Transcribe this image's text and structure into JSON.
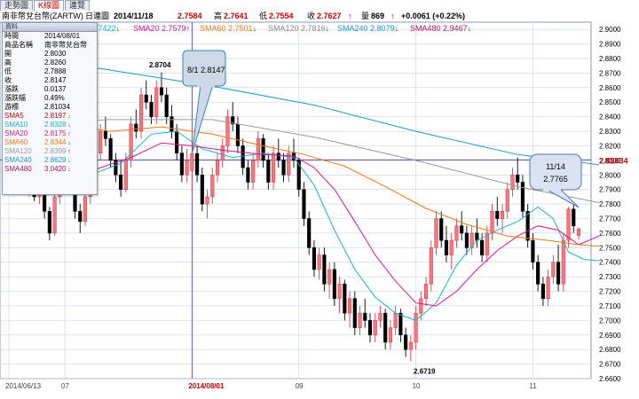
{
  "tabs": [
    {
      "label": "走勢圖"
    },
    {
      "label": "K線圖"
    },
    {
      "label": "連覽"
    }
  ],
  "header": {
    "product": "南非幣兌台幣(ZARTW)",
    "period": "日連圖",
    "date": "2014/11/18",
    "open": "2.7584",
    "high_label": "高",
    "high": "2.7641",
    "low_label": "低",
    "low": "2.7554",
    "close_label": "收",
    "close": "2.7627",
    "volume_label": "量",
    "volume": "869",
    "change": "+0.0061 (+0.22%)"
  },
  "sma_legend": [
    {
      "label": "",
      "value": ".7422",
      "dir": "down",
      "color": "#18b4c8"
    },
    {
      "label": "SMA20",
      "value": "2.7579",
      "dir": "up",
      "color": "#e0148c"
    },
    {
      "label": "SMA60",
      "value": "2.7501",
      "dir": "down",
      "color": "#f07818"
    },
    {
      "label": "SMA120",
      "value": "2.7816",
      "dir": "down",
      "color": "#9a9a9a"
    },
    {
      "label": "SMA240",
      "value": "2.8079",
      "dir": "down",
      "color": "#1e96d2"
    },
    {
      "label": "SMA480",
      "value": "2.9467",
      "dir": "down",
      "color": "#b4145a"
    }
  ],
  "info_panel": {
    "title": "資料",
    "rows": [
      {
        "key": "時間",
        "value": "2014/08/01",
        "color": "#000000"
      },
      {
        "key": "商品名稱",
        "value": "南非幣兌台幣",
        "color": "#000000"
      },
      {
        "key": "開",
        "value": "2.8030",
        "color": "#000000"
      },
      {
        "key": "高",
        "value": "2.8260",
        "color": "#000000"
      },
      {
        "key": "低",
        "value": "2.7888",
        "color": "#000000"
      },
      {
        "key": "收",
        "value": "2.8147",
        "color": "#000000"
      },
      {
        "key": "漲跌",
        "value": "0.0137",
        "color": "#000000"
      },
      {
        "key": "漲跌幅",
        "value": "0.49%",
        "color": "#000000"
      },
      {
        "key": "游標",
        "value": "2.81034",
        "color": "#000000"
      },
      {
        "key": "SMA5",
        "value": "2.8197",
        "dir": "down",
        "color": "#d00000"
      },
      {
        "key": "SMA10",
        "value": "2.8328",
        "dir": "down",
        "color": "#18b4c8"
      },
      {
        "key": "SMA20",
        "value": "2.8175",
        "dir": "up",
        "color": "#e0148c"
      },
      {
        "key": "SMA60",
        "value": "2.8344",
        "dir": "down",
        "color": "#f07818"
      },
      {
        "key": "SMA120",
        "value": "2.8399",
        "dir": "up",
        "color": "#9a9a9a"
      },
      {
        "key": "SMA240",
        "value": "2.8629",
        "dir": "down",
        "color": "#1e96d2"
      },
      {
        "key": "SMA480",
        "value": "3.0420",
        "dir": "down",
        "color": "#b4145a"
      }
    ]
  },
  "colors": {
    "up": "#f07a84",
    "up_border": "#d8404c",
    "down": "#000000",
    "grid": "#c9d3e3",
    "crosshair": "#3a3aa8",
    "callout_fill": "#cfd8e8",
    "callout_stroke": "#2e8ba8"
  },
  "chart_data": {
    "type": "candlestick",
    "ylim": [
      2.66,
      2.905
    ],
    "yticks": [
      "2.9000",
      "2.8900",
      "2.8800",
      "2.8700",
      "2.8600",
      "2.8500",
      "2.8400",
      "2.8300",
      "2.8200",
      "2.8100",
      "2.8000",
      "2.7900",
      "2.7800",
      "2.7700",
      "2.7600",
      "2.7500",
      "2.7400",
      "2.7300",
      "2.7200",
      "2.7100",
      "2.7000",
      "2.6900",
      "2.6800",
      "2.6700",
      "2.6600"
    ],
    "cursor_value": "2.81034",
    "xticks": [
      {
        "label": "2014/06/13",
        "index": 0
      },
      {
        "label": "07",
        "index": 11
      },
      {
        "label": "2014/08/01",
        "index": 36
      },
      {
        "label": "09",
        "index": 57
      },
      {
        "label": "10",
        "index": 80
      },
      {
        "label": "11",
        "index": 103
      }
    ],
    "peak_label": {
      "text": "2.8704",
      "index": 30,
      "value": 2.8704
    },
    "trough_label": {
      "text": "2.6719",
      "index": 82,
      "value": 2.6719
    },
    "callout_cursor": {
      "text": "8/1 2.8147",
      "index": 36,
      "value": 2.8147
    },
    "callout_last": {
      "line1": "11/14",
      "line2": "2.7765",
      "index": 112,
      "value": 2.7765
    },
    "candles": [
      [
        2.805,
        2.81,
        2.798,
        2.8
      ],
      [
        2.8,
        2.815,
        2.795,
        2.81
      ],
      [
        2.81,
        2.818,
        2.804,
        2.806
      ],
      [
        2.806,
        2.808,
        2.79,
        2.795
      ],
      [
        2.795,
        2.805,
        2.785,
        2.8
      ],
      [
        2.8,
        2.802,
        2.782,
        2.785
      ],
      [
        2.785,
        2.8,
        2.78,
        2.795
      ],
      [
        2.795,
        2.805,
        2.77,
        2.775
      ],
      [
        2.775,
        2.778,
        2.755,
        2.76
      ],
      [
        2.76,
        2.79,
        2.758,
        2.785
      ],
      [
        2.785,
        2.8,
        2.78,
        2.795
      ],
      [
        2.795,
        2.815,
        2.79,
        2.81
      ],
      [
        2.81,
        2.815,
        2.79,
        2.795
      ],
      [
        2.795,
        2.798,
        2.77,
        2.775
      ],
      [
        2.775,
        2.78,
        2.76,
        2.768
      ],
      [
        2.768,
        2.79,
        2.765,
        2.785
      ],
      [
        2.785,
        2.81,
        2.78,
        2.805
      ],
      [
        2.805,
        2.82,
        2.8,
        2.815
      ],
      [
        2.815,
        2.835,
        2.81,
        2.83
      ],
      [
        2.83,
        2.84,
        2.82,
        2.825
      ],
      [
        2.825,
        2.828,
        2.805,
        2.81
      ],
      [
        2.81,
        2.815,
        2.795,
        2.8
      ],
      [
        2.8,
        2.81,
        2.785,
        2.79
      ],
      [
        2.79,
        2.815,
        2.788,
        2.81
      ],
      [
        2.81,
        2.84,
        2.805,
        2.835
      ],
      [
        2.835,
        2.845,
        2.825,
        2.83
      ],
      [
        2.83,
        2.86,
        2.825,
        2.855
      ],
      [
        2.855,
        2.865,
        2.845,
        2.85
      ],
      [
        2.85,
        2.855,
        2.835,
        2.84
      ],
      [
        2.84,
        2.865,
        2.835,
        2.86
      ],
      [
        2.86,
        2.8704,
        2.85,
        2.855
      ],
      [
        2.855,
        2.86,
        2.835,
        2.84
      ],
      [
        2.84,
        2.848,
        2.825,
        2.83
      ],
      [
        2.83,
        2.835,
        2.81,
        2.815
      ],
      [
        2.815,
        2.82,
        2.795,
        2.8
      ],
      [
        2.8,
        2.818,
        2.795,
        2.81
      ],
      [
        2.803,
        2.826,
        2.7888,
        2.8147
      ],
      [
        2.8147,
        2.82,
        2.795,
        2.8
      ],
      [
        2.8,
        2.805,
        2.775,
        2.78
      ],
      [
        2.78,
        2.79,
        2.77,
        2.785
      ],
      [
        2.785,
        2.805,
        2.78,
        2.8
      ],
      [
        2.8,
        2.815,
        2.795,
        2.81
      ],
      [
        2.81,
        2.825,
        2.805,
        2.82
      ],
      [
        2.82,
        2.845,
        2.815,
        2.84
      ],
      [
        2.84,
        2.85,
        2.83,
        2.835
      ],
      [
        2.835,
        2.84,
        2.815,
        2.82
      ],
      [
        2.82,
        2.825,
        2.8,
        2.805
      ],
      [
        2.805,
        2.81,
        2.79,
        2.795
      ],
      [
        2.795,
        2.815,
        2.79,
        2.81
      ],
      [
        2.81,
        2.83,
        2.805,
        2.825
      ],
      [
        2.825,
        2.828,
        2.805,
        2.81
      ],
      [
        2.81,
        2.815,
        2.79,
        2.795
      ],
      [
        2.795,
        2.82,
        2.79,
        2.815
      ],
      [
        2.815,
        2.825,
        2.805,
        2.81
      ],
      [
        2.81,
        2.815,
        2.795,
        2.8
      ],
      [
        2.8,
        2.82,
        2.795,
        2.815
      ],
      [
        2.815,
        2.825,
        2.805,
        2.81
      ],
      [
        2.81,
        2.812,
        2.785,
        2.79
      ],
      [
        2.79,
        2.795,
        2.765,
        2.77
      ],
      [
        2.77,
        2.775,
        2.745,
        2.75
      ],
      [
        2.75,
        2.755,
        2.73,
        2.735
      ],
      [
        2.735,
        2.75,
        2.728,
        2.745
      ],
      [
        2.745,
        2.75,
        2.72,
        2.725
      ],
      [
        2.725,
        2.74,
        2.715,
        2.735
      ],
      [
        2.735,
        2.74,
        2.71,
        2.715
      ],
      [
        2.715,
        2.73,
        2.705,
        2.725
      ],
      [
        2.725,
        2.728,
        2.7,
        2.705
      ],
      [
        2.705,
        2.72,
        2.695,
        2.715
      ],
      [
        2.715,
        2.72,
        2.69,
        2.695
      ],
      [
        2.695,
        2.71,
        2.69,
        2.705
      ],
      [
        2.705,
        2.715,
        2.695,
        2.7
      ],
      [
        2.7,
        2.705,
        2.685,
        2.69
      ],
      [
        2.69,
        2.705,
        2.685,
        2.7
      ],
      [
        2.7,
        2.71,
        2.695,
        2.705
      ],
      [
        2.705,
        2.708,
        2.68,
        2.685
      ],
      [
        2.685,
        2.7,
        2.68,
        2.695
      ],
      [
        2.695,
        2.71,
        2.69,
        2.705
      ],
      [
        2.705,
        2.708,
        2.685,
        2.69
      ],
      [
        2.69,
        2.695,
        2.675,
        2.68
      ],
      [
        2.68,
        2.69,
        2.6719,
        2.685
      ],
      [
        2.685,
        2.71,
        2.68,
        2.705
      ],
      [
        2.705,
        2.72,
        2.7,
        2.715
      ],
      [
        2.715,
        2.73,
        2.71,
        2.725
      ],
      [
        2.725,
        2.755,
        2.72,
        2.75
      ],
      [
        2.75,
        2.775,
        2.745,
        2.77
      ],
      [
        2.77,
        2.775,
        2.75,
        2.755
      ],
      [
        2.755,
        2.765,
        2.74,
        2.745
      ],
      [
        2.745,
        2.76,
        2.735,
        2.755
      ],
      [
        2.755,
        2.77,
        2.75,
        2.765
      ],
      [
        2.765,
        2.775,
        2.755,
        2.76
      ],
      [
        2.76,
        2.765,
        2.745,
        2.75
      ],
      [
        2.75,
        2.765,
        2.745,
        2.76
      ],
      [
        2.76,
        2.77,
        2.75,
        2.755
      ],
      [
        2.755,
        2.76,
        2.74,
        2.745
      ],
      [
        2.745,
        2.765,
        2.74,
        2.76
      ],
      [
        2.76,
        2.78,
        2.755,
        2.775
      ],
      [
        2.775,
        2.785,
        2.765,
        2.77
      ],
      [
        2.77,
        2.78,
        2.76,
        2.775
      ],
      [
        2.775,
        2.795,
        2.77,
        2.79
      ],
      [
        2.79,
        2.805,
        2.785,
        2.8
      ],
      [
        2.8,
        2.812,
        2.79,
        2.795
      ],
      [
        2.795,
        2.8,
        2.77,
        2.775
      ],
      [
        2.775,
        2.78,
        2.75,
        2.755
      ],
      [
        2.755,
        2.76,
        2.735,
        2.74
      ],
      [
        2.74,
        2.745,
        2.72,
        2.725
      ],
      [
        2.725,
        2.73,
        2.71,
        2.715
      ],
      [
        2.715,
        2.735,
        2.71,
        2.73
      ],
      [
        2.73,
        2.745,
        2.725,
        2.74
      ],
      [
        2.74,
        2.752,
        2.72,
        2.725
      ],
      [
        2.725,
        2.76,
        2.72,
        2.755
      ],
      [
        2.755,
        2.778,
        2.75,
        2.7765
      ],
      [
        2.7765,
        2.78,
        2.76,
        2.765
      ],
      [
        2.7584,
        2.7641,
        2.7554,
        2.7627
      ]
    ],
    "series": [
      {
        "name": "SMA10",
        "color": "#18b4c8",
        "points": [
          [
            0,
            2.803
          ],
          [
            6,
            2.797
          ],
          [
            10,
            2.792
          ],
          [
            16,
            2.8
          ],
          [
            22,
            2.808
          ],
          [
            28,
            2.828
          ],
          [
            33,
            2.83
          ],
          [
            38,
            2.818
          ],
          [
            44,
            2.812
          ],
          [
            50,
            2.815
          ],
          [
            56,
            2.812
          ],
          [
            60,
            2.793
          ],
          [
            64,
            2.762
          ],
          [
            68,
            2.735
          ],
          [
            72,
            2.716
          ],
          [
            76,
            2.705
          ],
          [
            80,
            2.7
          ],
          [
            84,
            2.712
          ],
          [
            88,
            2.738
          ],
          [
            92,
            2.755
          ],
          [
            96,
            2.762
          ],
          [
            100,
            2.768
          ],
          [
            104,
            2.778
          ],
          [
            107,
            2.77
          ],
          [
            110,
            2.747
          ],
          [
            113,
            2.742
          ],
          [
            116,
            2.741
          ]
        ]
      },
      {
        "name": "SMA20",
        "color": "#e0148c",
        "points": [
          [
            0,
            2.806
          ],
          [
            6,
            2.802
          ],
          [
            12,
            2.798
          ],
          [
            18,
            2.805
          ],
          [
            24,
            2.812
          ],
          [
            30,
            2.822
          ],
          [
            36,
            2.82
          ],
          [
            42,
            2.817
          ],
          [
            50,
            2.814
          ],
          [
            56,
            2.813
          ],
          [
            60,
            2.805
          ],
          [
            64,
            2.79
          ],
          [
            68,
            2.768
          ],
          [
            72,
            2.745
          ],
          [
            76,
            2.727
          ],
          [
            80,
            2.712
          ],
          [
            84,
            2.71
          ],
          [
            88,
            2.72
          ],
          [
            92,
            2.735
          ],
          [
            96,
            2.748
          ],
          [
            100,
            2.758
          ],
          [
            104,
            2.765
          ],
          [
            108,
            2.762
          ],
          [
            112,
            2.752
          ],
          [
            116,
            2.758
          ]
        ]
      },
      {
        "name": "SMA60",
        "color": "#f07818",
        "points": [
          [
            0,
            2.84
          ],
          [
            10,
            2.835
          ],
          [
            20,
            2.83
          ],
          [
            30,
            2.833
          ],
          [
            40,
            2.828
          ],
          [
            50,
            2.82
          ],
          [
            58,
            2.814
          ],
          [
            66,
            2.806
          ],
          [
            74,
            2.792
          ],
          [
            82,
            2.777
          ],
          [
            90,
            2.766
          ],
          [
            98,
            2.758
          ],
          [
            106,
            2.755
          ],
          [
            112,
            2.752
          ],
          [
            116,
            2.751
          ]
        ]
      },
      {
        "name": "SMA120",
        "color": "#9a9a9a",
        "points": [
          [
            0,
            2.835
          ],
          [
            20,
            2.838
          ],
          [
            40,
            2.838
          ],
          [
            60,
            2.826
          ],
          [
            80,
            2.81
          ],
          [
            100,
            2.792
          ],
          [
            116,
            2.781
          ]
        ]
      },
      {
        "name": "SMA240",
        "color": "#1e96d2",
        "points": [
          [
            0,
            2.883
          ],
          [
            20,
            2.872
          ],
          [
            40,
            2.861
          ],
          [
            60,
            2.848
          ],
          [
            80,
            2.83
          ],
          [
            100,
            2.814
          ],
          [
            116,
            2.807
          ]
        ]
      }
    ]
  }
}
